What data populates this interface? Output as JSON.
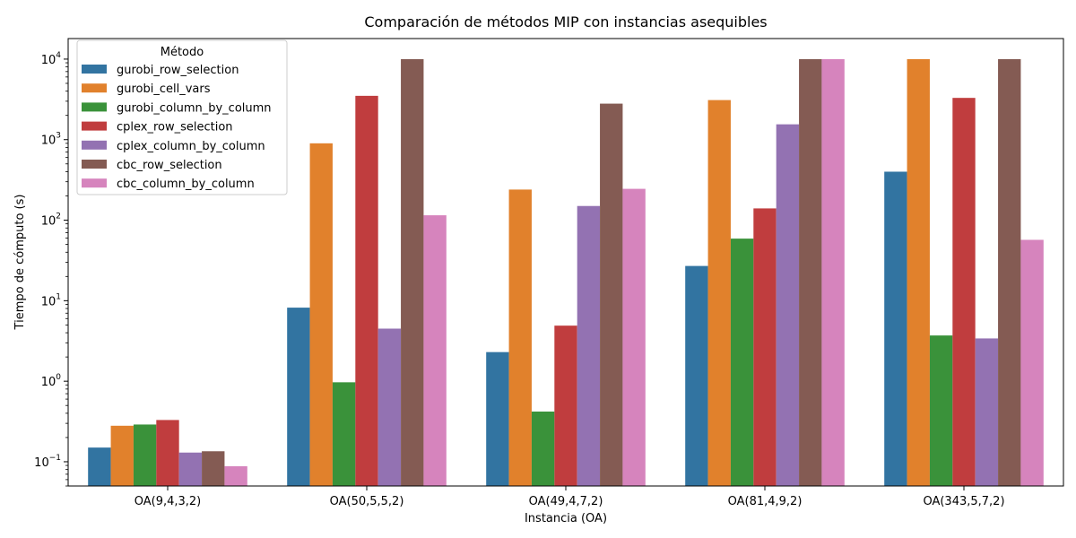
{
  "chart_data": {
    "type": "bar",
    "title": "Comparación de métodos MIP con instancias asequibles",
    "xlabel": "Instancia (OA)",
    "ylabel": "Tiempo de cómputo (s)",
    "yscale": "log",
    "ylim": [
      0.05,
      18000
    ],
    "grid": false,
    "legend_title": "Método",
    "legend_position": "upper-left",
    "categories": [
      "OA(9,4,3,2)",
      "OA(50,5,5,2)",
      "OA(49,4,7,2)",
      "OA(81,4,9,2)",
      "OA(343,5,7,2)"
    ],
    "y_tick_labels": [
      "10",
      "10",
      "10",
      "10",
      "10",
      "10"
    ],
    "y_tick_exponents": [
      "−1",
      "0",
      "1",
      "2",
      "3",
      "4"
    ],
    "y_tick_values": [
      0.1,
      1,
      10,
      100,
      1000,
      10000
    ],
    "series": [
      {
        "name": "gurobi_row_selection",
        "color": "#3274a1",
        "values": [
          0.15,
          8.2,
          2.3,
          27,
          400
        ]
      },
      {
        "name": "gurobi_cell_vars",
        "color": "#e1812c",
        "values": [
          0.28,
          900,
          240,
          3100,
          10000
        ]
      },
      {
        "name": "gurobi_column_by_column",
        "color": "#3a923a",
        "values": [
          0.29,
          0.97,
          0.42,
          59,
          3.7
        ]
      },
      {
        "name": "cplex_row_selection",
        "color": "#c03d3e",
        "values": [
          0.33,
          3500,
          4.9,
          140,
          3300
        ]
      },
      {
        "name": "cplex_column_by_column",
        "color": "#9372b2",
        "values": [
          0.13,
          4.5,
          150,
          1550,
          3.4
        ]
      },
      {
        "name": "cbc_row_selection",
        "color": "#845b53",
        "values": [
          0.135,
          10000,
          2800,
          10000,
          10000
        ]
      },
      {
        "name": "cbc_column_by_column",
        "color": "#d684bd",
        "values": [
          0.088,
          115,
          245,
          10000,
          57
        ]
      }
    ]
  }
}
